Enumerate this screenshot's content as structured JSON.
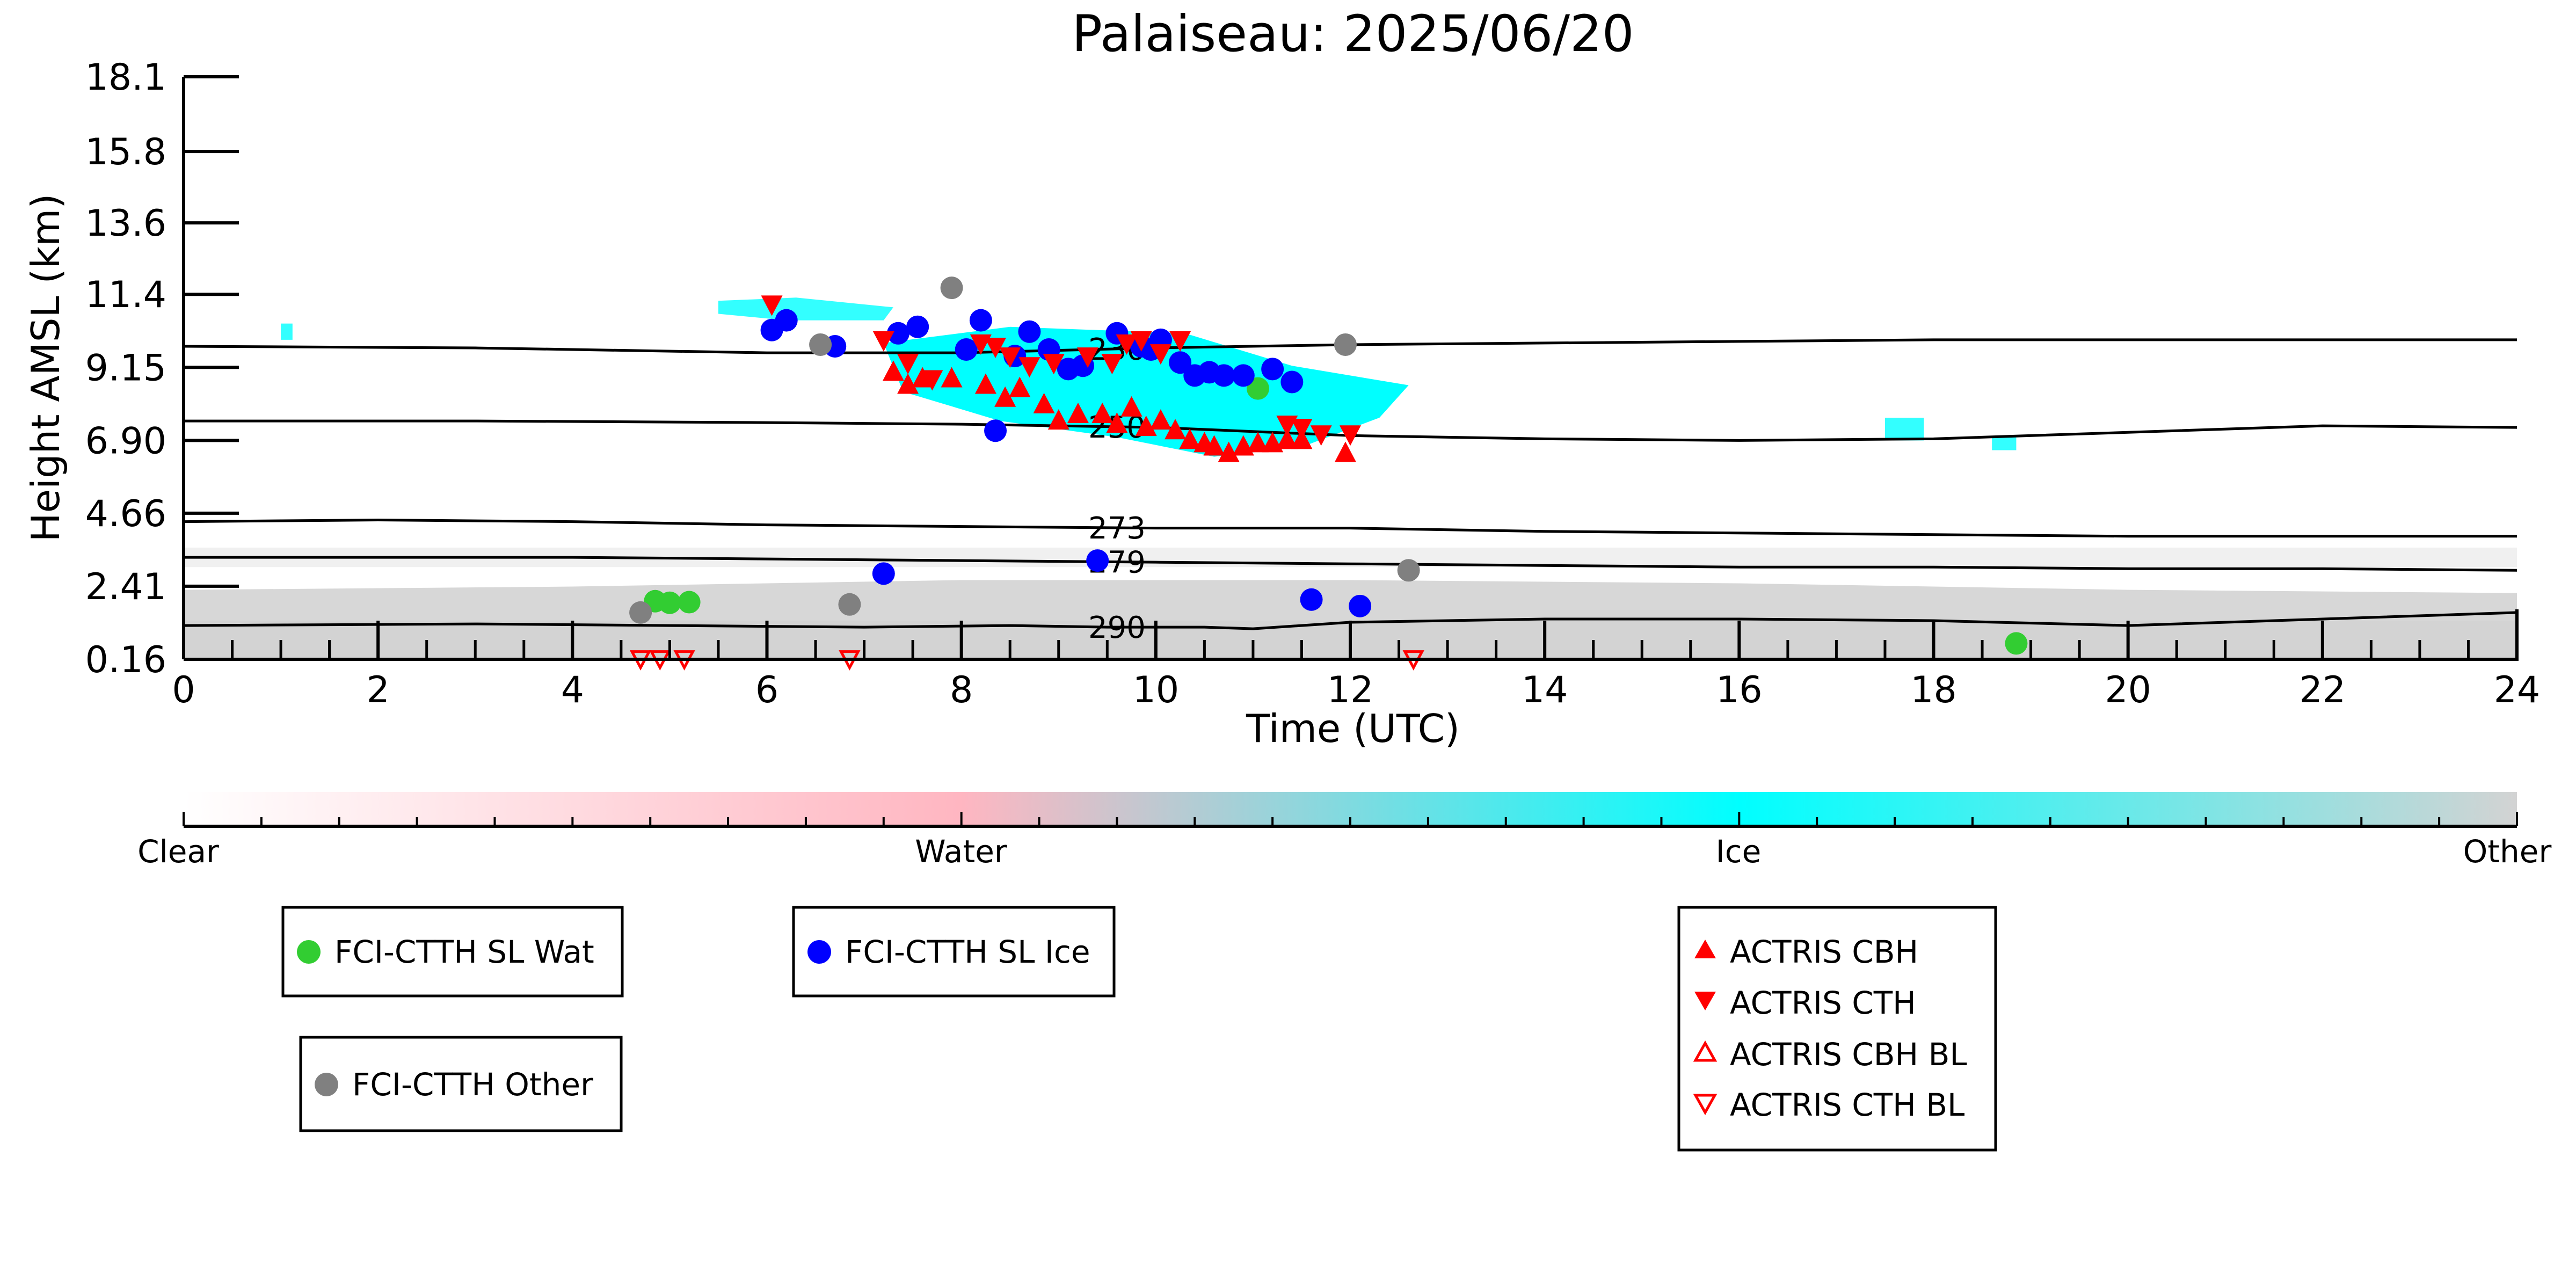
{
  "chart_data": {
    "type": "scatter",
    "title": "Palaiseau: 2025/06/20",
    "xlabel": "Time (UTC)",
    "ylabel": "Height AMSL (km)",
    "xlim": [
      0,
      24
    ],
    "ylim": [
      0.16,
      18.1
    ],
    "x_ticks": [
      "0",
      "2",
      "4",
      "6",
      "8",
      "10",
      "12",
      "14",
      "16",
      "18",
      "20",
      "22",
      "24"
    ],
    "y_ticks": [
      "0.16",
      "2.41",
      "4.66",
      "6.90",
      "9.15",
      "11.4",
      "13.6",
      "15.8",
      "18.1"
    ],
    "grid": false,
    "colorbar": {
      "labels": [
        "Clear",
        "Water",
        "Ice",
        "Other"
      ],
      "colors": [
        "#ffffff",
        "#ffb6c1",
        "#00ffff",
        "#d3d3d3"
      ]
    },
    "background_classes": {
      "ice_cloud_color": "#00ffff",
      "other_color": "#d3d3d3",
      "water_color": "#ffb6c1"
    },
    "temperature_contours": [
      {
        "label": "230",
        "points": [
          [
            0,
            9.8
          ],
          [
            3,
            9.75
          ],
          [
            6,
            9.6
          ],
          [
            8,
            9.6
          ],
          [
            10,
            9.75
          ],
          [
            12,
            9.85
          ],
          [
            14,
            9.9
          ],
          [
            16,
            9.95
          ],
          [
            18,
            10.0
          ],
          [
            20,
            10.0
          ],
          [
            22,
            10.0
          ],
          [
            24,
            10.0
          ]
        ]
      },
      {
        "label": "250",
        "points": [
          [
            0,
            7.5
          ],
          [
            3,
            7.5
          ],
          [
            6,
            7.45
          ],
          [
            8,
            7.4
          ],
          [
            10,
            7.3
          ],
          [
            12,
            7.05
          ],
          [
            14,
            6.95
          ],
          [
            16,
            6.9
          ],
          [
            18,
            6.95
          ],
          [
            20,
            7.15
          ],
          [
            22,
            7.35
          ],
          [
            24,
            7.3
          ]
        ]
      },
      {
        "label": "273",
        "points": [
          [
            0,
            4.4
          ],
          [
            2,
            4.45
          ],
          [
            4,
            4.4
          ],
          [
            6,
            4.3
          ],
          [
            8,
            4.25
          ],
          [
            10,
            4.2
          ],
          [
            12,
            4.2
          ],
          [
            14,
            4.1
          ],
          [
            16,
            4.05
          ],
          [
            18,
            4.0
          ],
          [
            20,
            3.95
          ],
          [
            22,
            3.95
          ],
          [
            24,
            3.95
          ]
        ]
      },
      {
        "label": "279",
        "points": [
          [
            0,
            3.3
          ],
          [
            4,
            3.3
          ],
          [
            6,
            3.25
          ],
          [
            8,
            3.2
          ],
          [
            10,
            3.15
          ],
          [
            12,
            3.1
          ],
          [
            14,
            3.05
          ],
          [
            16,
            3.0
          ],
          [
            18,
            3.0
          ],
          [
            20,
            2.95
          ],
          [
            22,
            2.95
          ],
          [
            24,
            2.9
          ]
        ]
      },
      {
        "label": "290",
        "points": [
          [
            0,
            1.2
          ],
          [
            3,
            1.25
          ],
          [
            5,
            1.2
          ],
          [
            7,
            1.15
          ],
          [
            8.5,
            1.2
          ],
          [
            9.5,
            1.15
          ],
          [
            10.5,
            1.15
          ],
          [
            11,
            1.1
          ],
          [
            12,
            1.3
          ],
          [
            14,
            1.4
          ],
          [
            16,
            1.4
          ],
          [
            18,
            1.35
          ],
          [
            20,
            1.2
          ],
          [
            22,
            1.4
          ],
          [
            24,
            1.6
          ]
        ]
      }
    ],
    "series": [
      {
        "name": "FCI-CTTH SL Wat",
        "marker": "circle",
        "color": "#32cd32",
        "points": [
          [
            4.85,
            1.95
          ],
          [
            5.0,
            1.9
          ],
          [
            5.2,
            1.92
          ],
          [
            11.05,
            8.5
          ],
          [
            18.85,
            0.65
          ]
        ]
      },
      {
        "name": "FCI-CTTH SL Ice",
        "marker": "circle",
        "color": "#0000ff",
        "points": [
          [
            6.05,
            10.3
          ],
          [
            6.2,
            10.6
          ],
          [
            6.7,
            9.8
          ],
          [
            7.2,
            2.8
          ],
          [
            7.35,
            10.2
          ],
          [
            7.55,
            10.4
          ],
          [
            8.05,
            9.7
          ],
          [
            8.2,
            10.6
          ],
          [
            8.35,
            7.2
          ],
          [
            8.55,
            9.5
          ],
          [
            8.7,
            10.25
          ],
          [
            8.9,
            9.7
          ],
          [
            9.1,
            9.1
          ],
          [
            9.25,
            9.2
          ],
          [
            9.4,
            3.2
          ],
          [
            9.6,
            10.2
          ],
          [
            9.85,
            9.8
          ],
          [
            9.95,
            9.7
          ],
          [
            10.05,
            10.0
          ],
          [
            10.25,
            9.3
          ],
          [
            10.4,
            8.9
          ],
          [
            10.55,
            9.0
          ],
          [
            10.7,
            8.9
          ],
          [
            10.9,
            8.9
          ],
          [
            11.2,
            9.1
          ],
          [
            11.4,
            8.7
          ],
          [
            11.6,
            2.0
          ],
          [
            12.1,
            1.8
          ]
        ]
      },
      {
        "name": "FCI-CTTH Other",
        "marker": "circle",
        "color": "#808080",
        "points": [
          [
            4.7,
            1.6
          ],
          [
            6.55,
            9.85
          ],
          [
            6.85,
            1.85
          ],
          [
            7.9,
            11.6
          ],
          [
            11.95,
            9.85
          ],
          [
            12.6,
            2.9
          ]
        ]
      },
      {
        "name": "ACTRIS CBH",
        "marker": "triangle-up",
        "color": "#ff0000",
        "points": [
          [
            7.3,
            9.0
          ],
          [
            7.45,
            8.6
          ],
          [
            7.6,
            8.8
          ],
          [
            7.9,
            8.8
          ],
          [
            8.25,
            8.6
          ],
          [
            8.45,
            8.2
          ],
          [
            8.6,
            8.5
          ],
          [
            8.85,
            8.0
          ],
          [
            9.0,
            7.5
          ],
          [
            9.2,
            7.7
          ],
          [
            9.45,
            7.7
          ],
          [
            9.6,
            7.4
          ],
          [
            9.75,
            7.9
          ],
          [
            9.9,
            7.3
          ],
          [
            10.05,
            7.5
          ],
          [
            10.2,
            7.2
          ],
          [
            10.35,
            6.9
          ],
          [
            10.5,
            6.8
          ],
          [
            10.6,
            6.7
          ],
          [
            10.75,
            6.5
          ],
          [
            10.9,
            6.7
          ],
          [
            11.05,
            6.8
          ],
          [
            11.2,
            6.8
          ],
          [
            11.35,
            6.9
          ],
          [
            11.5,
            6.9
          ],
          [
            11.95,
            6.5
          ]
        ]
      },
      {
        "name": "ACTRIS CTH",
        "marker": "triangle-down",
        "color": "#ff0000",
        "points": [
          [
            6.05,
            11.1
          ],
          [
            7.2,
            10.0
          ],
          [
            7.45,
            9.3
          ],
          [
            7.7,
            8.8
          ],
          [
            8.2,
            9.9
          ],
          [
            8.35,
            9.8
          ],
          [
            8.5,
            9.5
          ],
          [
            8.7,
            9.2
          ],
          [
            8.95,
            9.3
          ],
          [
            9.3,
            9.5
          ],
          [
            9.55,
            9.3
          ],
          [
            9.7,
            9.9
          ],
          [
            9.85,
            10.0
          ],
          [
            10.05,
            9.6
          ],
          [
            10.25,
            10.0
          ],
          [
            11.35,
            7.4
          ],
          [
            11.5,
            7.3
          ],
          [
            11.7,
            7.1
          ],
          [
            12.0,
            7.1
          ]
        ]
      },
      {
        "name": "ACTRIS CBH BL",
        "marker": "triangle-up-open",
        "color": "#ff0000",
        "points": []
      },
      {
        "name": "ACTRIS CTH BL",
        "marker": "triangle-down-open",
        "color": "#ff0000",
        "points": [
          [
            4.7,
            0.2
          ],
          [
            4.9,
            0.2
          ],
          [
            5.15,
            0.2
          ],
          [
            6.85,
            0.2
          ],
          [
            12.65,
            0.2
          ]
        ]
      }
    ]
  }
}
